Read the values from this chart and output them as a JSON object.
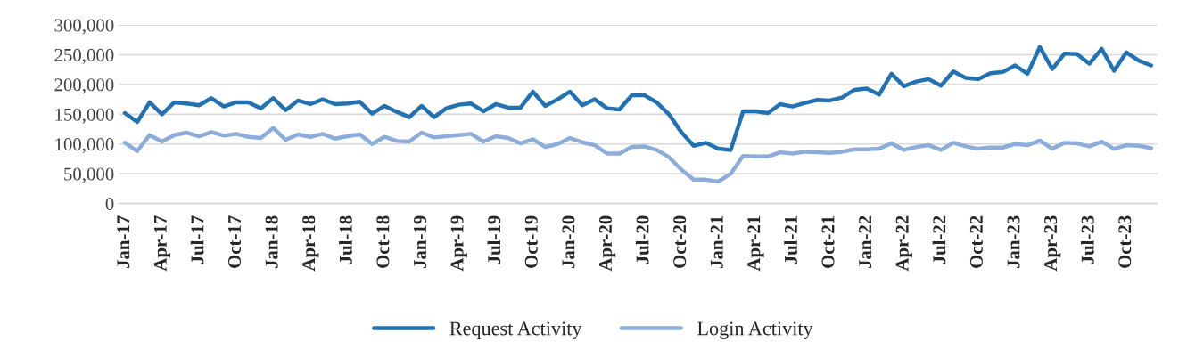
{
  "chart_data": {
    "type": "line",
    "categories": [
      "Jan-17",
      null,
      null,
      "Apr-17",
      null,
      null,
      "Jul-17",
      null,
      null,
      "Oct-17",
      null,
      null,
      "Jan-18",
      null,
      null,
      "Apr-18",
      null,
      null,
      "Jul-18",
      null,
      null,
      "Oct-18",
      null,
      null,
      "Jan-19",
      null,
      null,
      "Apr-19",
      null,
      null,
      "Jul-19",
      null,
      null,
      "Oct-19",
      null,
      null,
      "Jan-20",
      null,
      null,
      "Apr-20",
      null,
      null,
      "Jul-20",
      null,
      null,
      "Oct-20",
      null,
      null,
      "Jan-21",
      null,
      null,
      "Apr-21",
      null,
      null,
      "Jul-21",
      null,
      null,
      "Oct-21",
      null,
      null,
      "Jan-22",
      null,
      null,
      "Apr-22",
      null,
      null,
      "Jul-22",
      null,
      null,
      "Oct-22",
      null,
      null,
      "Jan-23",
      null,
      null,
      "Apr-23",
      null,
      null,
      "Jul-23",
      null,
      null,
      "Oct-23",
      null,
      null
    ],
    "series": [
      {
        "name": "Request Activity",
        "color": "#2271b3",
        "values": [
          152000,
          137000,
          170000,
          150000,
          170000,
          168000,
          165000,
          177000,
          163000,
          170000,
          170000,
          160000,
          177000,
          157000,
          173000,
          167000,
          175000,
          167000,
          168000,
          171000,
          151000,
          164000,
          154000,
          145000,
          164000,
          145000,
          160000,
          166000,
          168000,
          155000,
          167000,
          161000,
          161000,
          188000,
          164000,
          175000,
          188000,
          165000,
          175000,
          160000,
          158000,
          182000,
          182000,
          170000,
          150000,
          120000,
          97000,
          102000,
          92000,
          90000,
          155000,
          155000,
          152000,
          167000,
          163000,
          169000,
          174000,
          173000,
          178000,
          191000,
          193000,
          183000,
          218000,
          197000,
          205000,
          209000,
          198000,
          222000,
          211000,
          209000,
          219000,
          221000,
          232000,
          218000,
          263000,
          226000,
          252000,
          251000,
          235000,
          260000,
          223000,
          254000,
          240000,
          232000
        ]
      },
      {
        "name": "Login Activity",
        "color": "#8cadd9",
        "values": [
          102000,
          88000,
          115000,
          104000,
          115000,
          119000,
          113000,
          120000,
          114000,
          117000,
          112000,
          110000,
          127000,
          107000,
          116000,
          112000,
          117000,
          109000,
          113000,
          116000,
          100000,
          112000,
          105000,
          104000,
          119000,
          111000,
          113000,
          115000,
          117000,
          104000,
          113000,
          110000,
          101000,
          108000,
          95000,
          100000,
          110000,
          103000,
          98000,
          84000,
          84000,
          95000,
          96000,
          90000,
          78000,
          57000,
          40000,
          40000,
          37000,
          50000,
          80000,
          79000,
          79000,
          86000,
          84000,
          87000,
          86000,
          85000,
          87000,
          91000,
          91000,
          92000,
          101000,
          90000,
          95000,
          98000,
          90000,
          102000,
          96000,
          92000,
          94000,
          94000,
          100000,
          98000,
          106000,
          92000,
          102000,
          101000,
          96000,
          104000,
          92000,
          98000,
          97000,
          93000
        ]
      }
    ],
    "ylim": [
      0,
      300000
    ],
    "yticks": [
      0,
      {
        "value": 50000,
        "label": "50,000"
      },
      {
        "value": 100000,
        "label": "100,000"
      },
      {
        "value": 150000,
        "label": "150,000"
      },
      {
        "value": 200000,
        "label": "200,000"
      },
      {
        "value": 250000,
        "label": "250,000"
      },
      {
        "value": 300000,
        "label": "300,000"
      }
    ],
    "grid": "y",
    "legend": "bottom",
    "line_style": "solid",
    "marker": "none"
  }
}
